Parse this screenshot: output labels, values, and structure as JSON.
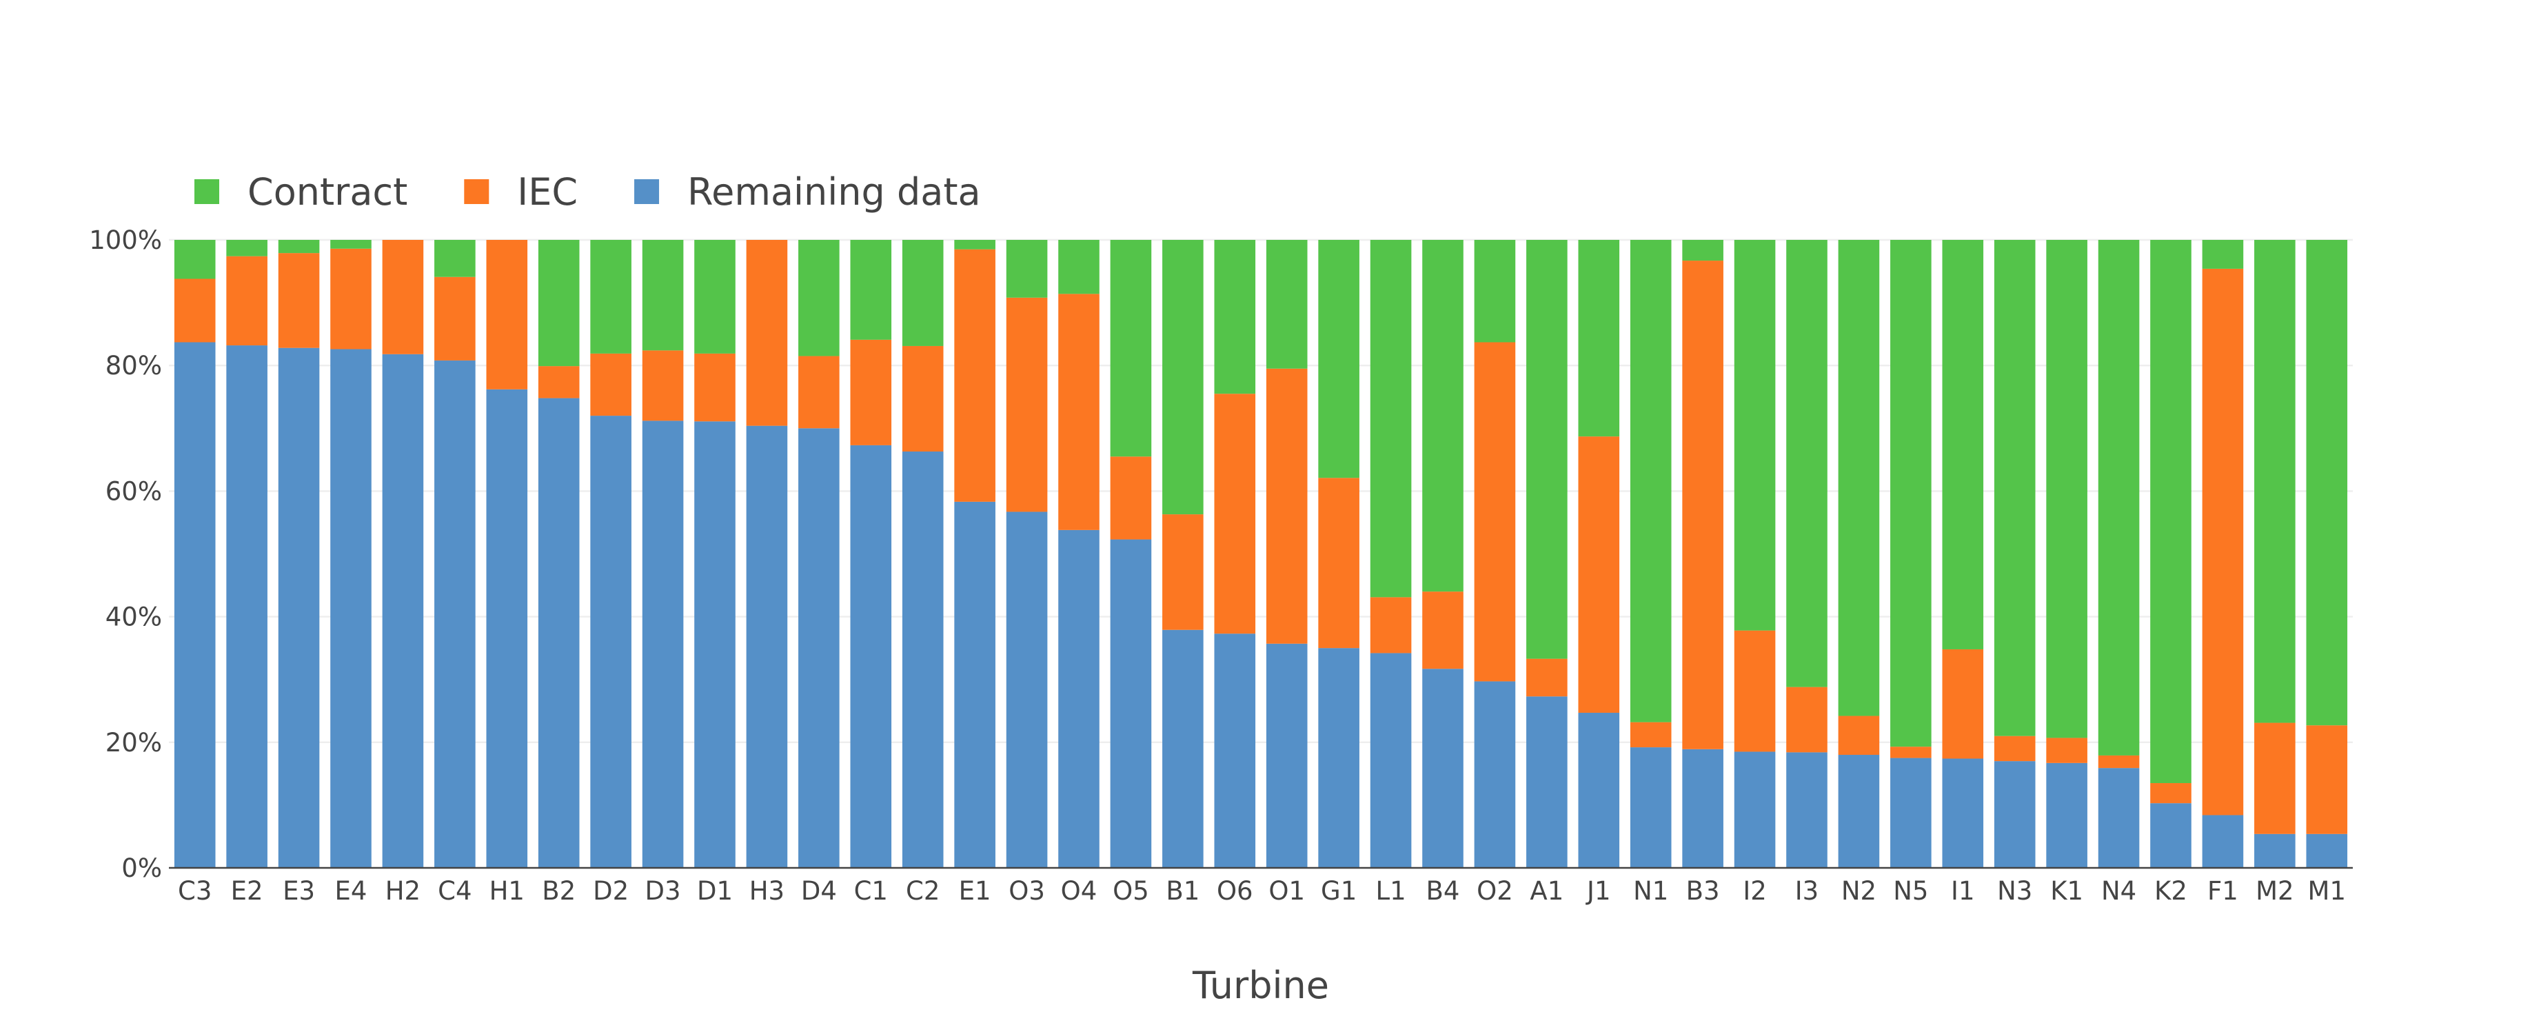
{
  "chart_data": {
    "type": "bar",
    "stacked": true,
    "percent": true,
    "xlabel": "Turbine",
    "ylabel": "",
    "ylim": [
      0,
      100
    ],
    "y_ticks": [
      "0%",
      "20%",
      "40%",
      "60%",
      "80%",
      "100%"
    ],
    "grid": true,
    "legend_position": "top-left",
    "categories": [
      "C3",
      "E2",
      "E3",
      "E4",
      "H2",
      "C4",
      "H1",
      "B2",
      "D2",
      "D3",
      "D1",
      "H3",
      "D4",
      "C1",
      "C2",
      "E1",
      "O3",
      "O4",
      "O5",
      "B1",
      "O6",
      "O1",
      "G1",
      "L1",
      "B4",
      "O2",
      "A1",
      "J1",
      "N1",
      "B3",
      "I2",
      "I3",
      "N2",
      "N5",
      "I1",
      "N3",
      "K1",
      "N4",
      "K2",
      "F1",
      "M2",
      "M1"
    ],
    "series": [
      {
        "name": "Remaining data",
        "color": "#5590c8",
        "values": [
          83.7,
          83.2,
          82.8,
          82.6,
          81.8,
          80.8,
          76.2,
          74.8,
          72.0,
          71.2,
          71.1,
          70.4,
          70.0,
          67.3,
          66.3,
          58.3,
          56.7,
          53.8,
          52.3,
          37.9,
          37.3,
          35.7,
          35.0,
          34.2,
          31.7,
          29.7,
          27.3,
          24.7,
          19.2,
          18.9,
          18.5,
          18.4,
          18.0,
          17.5,
          17.4,
          17.0,
          16.7,
          15.9,
          10.3,
          8.4,
          5.4,
          5.4
        ]
      },
      {
        "name": "IEC",
        "color": "#fc7722",
        "values": [
          10.1,
          14.2,
          15.1,
          16.0,
          18.2,
          13.3,
          23.8,
          5.1,
          9.9,
          11.2,
          10.8,
          29.6,
          11.5,
          16.8,
          16.8,
          40.2,
          34.1,
          37.6,
          13.2,
          18.4,
          38.2,
          43.8,
          27.1,
          8.9,
          12.3,
          54.0,
          6.0,
          44.0,
          4.0,
          77.8,
          19.3,
          10.4,
          6.2,
          1.8,
          17.4,
          4.0,
          4.0,
          2.0,
          3.2,
          87.0,
          17.7,
          17.3
        ]
      },
      {
        "name": "Contract",
        "color": "#54c44a",
        "values": [
          6.2,
          2.6,
          2.1,
          1.4,
          0.0,
          5.9,
          0.0,
          20.1,
          18.1,
          17.6,
          18.1,
          0.0,
          18.5,
          15.9,
          16.9,
          1.5,
          9.2,
          8.6,
          34.5,
          43.7,
          24.5,
          20.5,
          37.9,
          56.9,
          56.0,
          16.3,
          66.7,
          31.3,
          76.8,
          3.3,
          62.2,
          71.2,
          75.8,
          80.7,
          65.2,
          79.0,
          79.3,
          82.1,
          86.5,
          4.6,
          76.9,
          77.3
        ]
      }
    ]
  }
}
